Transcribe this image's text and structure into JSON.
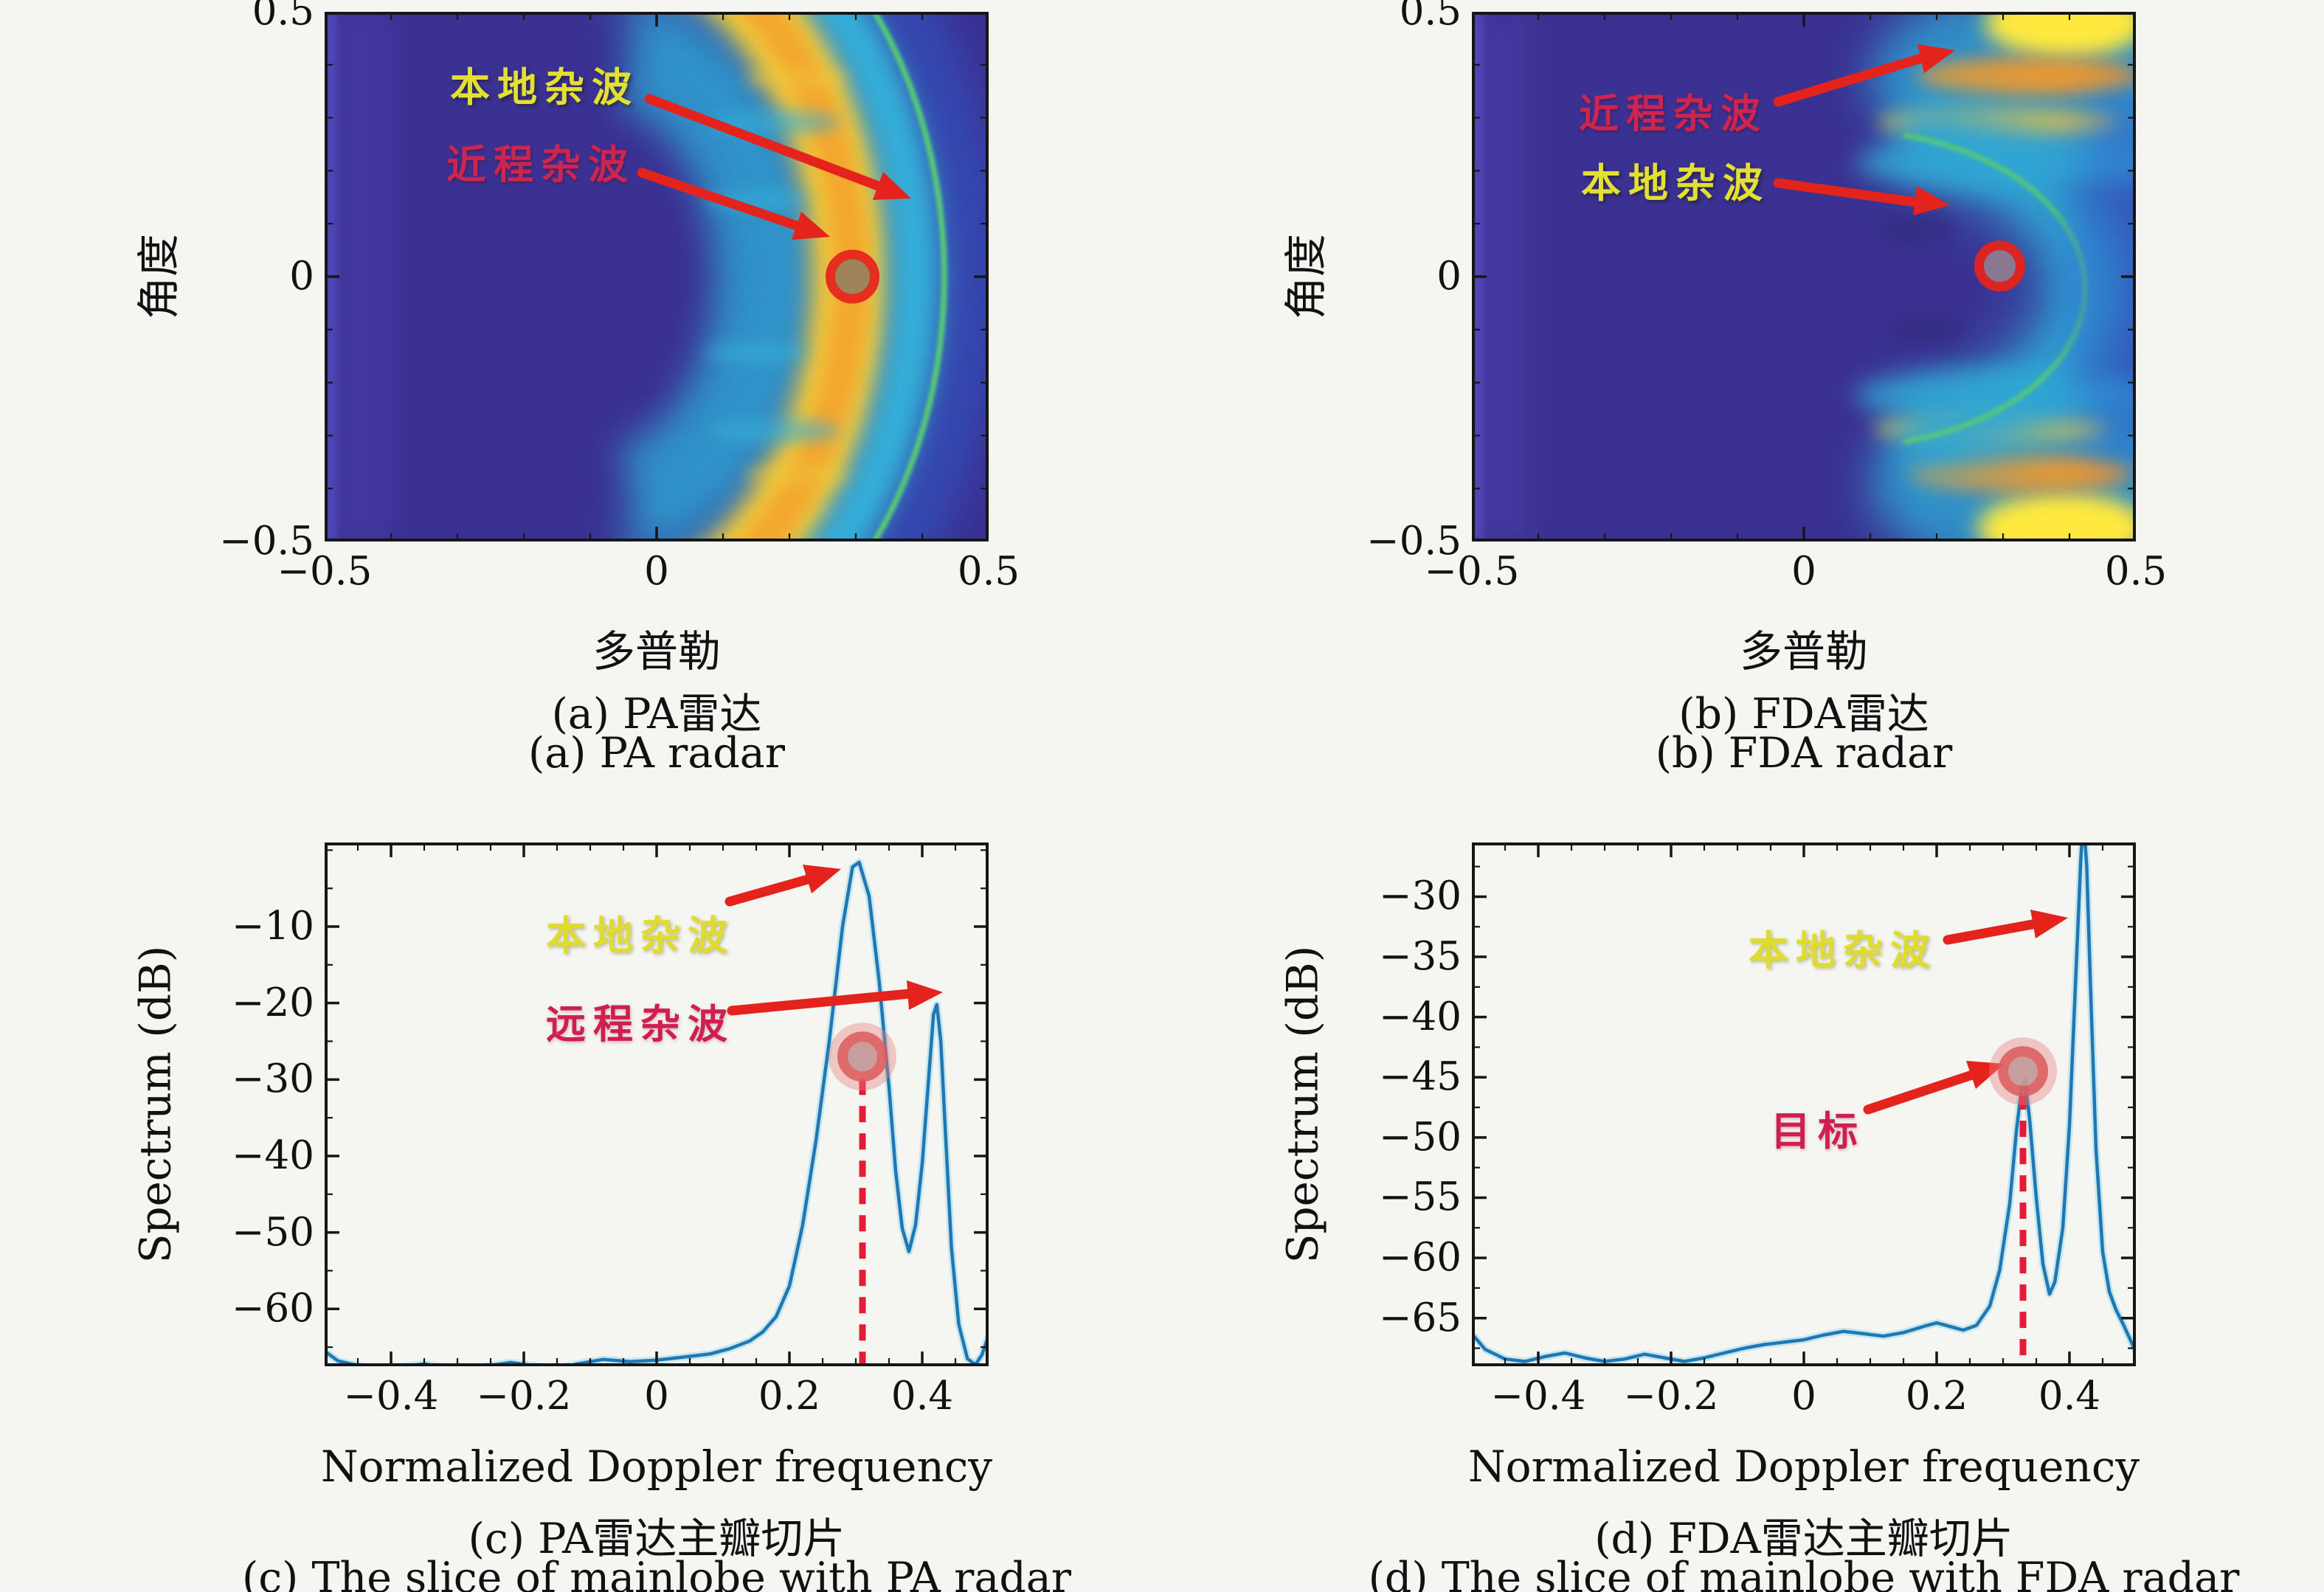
{
  "figure": {
    "background": "#f5f5f2",
    "kind": "2x2 radar clutter spectrum comparison figure"
  },
  "colors": {
    "arrow_red": "#e5231d",
    "annotation_yellow": "#e4e032",
    "annotation_crimson": "#cb2550",
    "curve_blue": "#1f77b4",
    "curve_glow": "#8fd7e8",
    "dashed_red": "#e31b34",
    "marker_fill": "#c59898",
    "marker_ring": "#dd5f5f",
    "target_ring": "#e5231d",
    "heatmap_bg": "#3a3192",
    "clutter_cyan": "#2fa6d4",
    "clutter_yellow": "#f3cd39",
    "clutter_orange": "#f39d2c",
    "clutter_green": "#57c878",
    "axis_color": "#161616"
  },
  "panels": {
    "a": {
      "ylabel": "角度",
      "xlabel": "多普勒",
      "caption_zh": "(a) PA雷达",
      "caption_en": "(a) PA radar",
      "ann1": "本地杂波",
      "ann2": "近程杂波"
    },
    "b": {
      "ylabel": "角度",
      "xlabel": "多普勒",
      "caption_zh": "(b) FDA雷达",
      "caption_en": "(b) FDA radar",
      "ann1": "近程杂波",
      "ann2": "本地杂波"
    },
    "c": {
      "ylabel": "Spectrum (dB)",
      "xlabel": "Normalized Doppler frequency",
      "caption_zh": "(c) PA雷达主瓣切片",
      "caption_en": "(c) The slice of mainlobe with PA radar",
      "ann1": "本地杂波",
      "ann2": "远程杂波"
    },
    "d": {
      "ylabel": "Spectrum (dB)",
      "xlabel": "Normalized Doppler frequency",
      "caption_zh": "(d) FDA雷达主瓣切片",
      "caption_en": "(d) The slice of mainlobe with FDA radar",
      "ann1": "本地杂波",
      "ann2": "目标"
    }
  },
  "chart_data": [
    {
      "id": "a",
      "type": "heatmap",
      "title": "(a) PA雷达",
      "xlabel": "多普勒",
      "ylabel": "角度",
      "xlim": [
        -0.5,
        0.5
      ],
      "ytop": 0.5,
      "ybot": -0.5,
      "xticks_v": [
        -0.5,
        0,
        0.5
      ],
      "xticks_l": [
        "−0.5",
        "0",
        "0.5"
      ],
      "yticks_v": [
        0.5,
        0,
        -0.5
      ],
      "yticks_l": [
        "0.5",
        "0",
        "−0.5"
      ],
      "xminor": 0.1,
      "yminor": 0.1,
      "target": {
        "x": 0.295,
        "y": 0
      },
      "features": [
        "crescent clutter ridge opening left, apex near doppler 0.45",
        "yellow-orange inner band through (0.30, 0)",
        "thin green outer arc near doppler 0.43",
        "red circled target at (0.30, 0) on yellow band"
      ]
    },
    {
      "id": "b",
      "type": "heatmap",
      "title": "(b) FDA雷达",
      "xlabel": "多普勒",
      "ylabel": "角度",
      "xlim": [
        -0.5,
        0.5
      ],
      "ytop": 0.5,
      "ybot": -0.5,
      "xticks_v": [
        -0.5,
        0,
        0.5
      ],
      "xticks_l": [
        "−0.5",
        "0",
        "0.5"
      ],
      "yticks_v": [
        0.5,
        0,
        -0.5
      ],
      "yticks_l": [
        "0.5",
        "0",
        "−0.5"
      ],
      "xminor": 0.1,
      "yminor": 0.1,
      "target": {
        "x": 0.295,
        "y": 0.02
      },
      "features": [
        "bright yellow near-range hotspots at top-right and bottom-right edges",
        "narrow cyan band with thin green arc bulging to doppler 0.42 at angle 0",
        "red circled target at (0.30, 0) on dark blue background"
      ]
    },
    {
      "id": "c",
      "type": "line",
      "title": "(c) PA雷达主瓣切片",
      "xlabel": "Normalized Doppler frequency",
      "ylabel": "Spectrum (dB)",
      "xlim": [
        -0.5,
        0.5
      ],
      "ytop": 1,
      "ybot": -67.5,
      "xticks_v": [
        -0.4,
        -0.2,
        0,
        0.2,
        0.4
      ],
      "xticks_l": [
        "−0.4",
        "−0.2",
        "0",
        "0.2",
        "0.4"
      ],
      "yticks_v": [
        -10,
        -20,
        -30,
        -40,
        -50,
        -60
      ],
      "yticks_l": [
        "−10",
        "−20",
        "−30",
        "−40",
        "−50",
        "−60"
      ],
      "xminor": 0.05,
      "yminor": 5,
      "x": [
        -0.5,
        -0.48,
        -0.45,
        -0.42,
        -0.38,
        -0.35,
        -0.32,
        -0.28,
        -0.25,
        -0.22,
        -0.18,
        -0.15,
        -0.12,
        -0.08,
        -0.04,
        0,
        0.04,
        0.08,
        0.11,
        0.14,
        0.16,
        0.18,
        0.2,
        0.22,
        0.24,
        0.26,
        0.28,
        0.295,
        0.305,
        0.32,
        0.335,
        0.35,
        0.36,
        0.37,
        0.38,
        0.39,
        0.4,
        0.41,
        0.417,
        0.422,
        0.428,
        0.435,
        0.444,
        0.455,
        0.468,
        0.48,
        0.49,
        0.5
      ],
      "y": [
        -65.5,
        -66.8,
        -67.4,
        -67.8,
        -67.5,
        -67.2,
        -67.6,
        -67.9,
        -67.4,
        -67,
        -67.5,
        -67.8,
        -67.2,
        -66.6,
        -66.9,
        -66.7,
        -66.3,
        -65.9,
        -65.2,
        -64.2,
        -63,
        -61,
        -57,
        -49,
        -38,
        -25,
        -10,
        -2.2,
        -1.6,
        -6,
        -17,
        -31,
        -42,
        -49.5,
        -52.5,
        -49,
        -41,
        -29.5,
        -21.5,
        -20.2,
        -25,
        -37,
        -52,
        -62,
        -66.5,
        -67.3,
        -66,
        -63.5
      ],
      "marker": {
        "x": 0.31,
        "y": -27
      },
      "dashed_x": 0.31,
      "peaks": [
        {
          "x": 0.3,
          "y": -1.6,
          "label": "本地杂波"
        },
        {
          "x": 0.42,
          "y": -20.2,
          "label": "远程杂波"
        }
      ]
    },
    {
      "id": "d",
      "type": "line",
      "title": "(d) FDA雷达主瓣切片",
      "xlabel": "Normalized Doppler frequency",
      "ylabel": "Spectrum (dB)",
      "xlim": [
        -0.5,
        0.5
      ],
      "ytop": -25.5,
      "ybot": -69,
      "xticks_v": [
        -0.4,
        -0.2,
        0,
        0.2,
        0.4
      ],
      "xticks_l": [
        "−0.4",
        "−0.2",
        "0",
        "0.2",
        "0.4"
      ],
      "yticks_v": [
        -30,
        -35,
        -40,
        -45,
        -50,
        -55,
        -60,
        -65
      ],
      "yticks_l": [
        "−30",
        "−35",
        "−40",
        "−45",
        "−50",
        "−55",
        "−60",
        "−65"
      ],
      "xminor": 0.05,
      "yminor": 2.5,
      "x": [
        -0.5,
        -0.48,
        -0.45,
        -0.42,
        -0.39,
        -0.36,
        -0.33,
        -0.3,
        -0.27,
        -0.24,
        -0.21,
        -0.18,
        -0.15,
        -0.12,
        -0.09,
        -0.06,
        -0.03,
        0,
        0.03,
        0.06,
        0.09,
        0.12,
        0.15,
        0.18,
        0.2,
        0.22,
        0.24,
        0.26,
        0.28,
        0.295,
        0.31,
        0.32,
        0.328,
        0.333,
        0.34,
        0.35,
        0.36,
        0.37,
        0.378,
        0.39,
        0.4,
        0.41,
        0.417,
        0.421,
        0.426,
        0.432,
        0.44,
        0.45,
        0.46,
        0.47,
        0.48,
        0.49,
        0.5
      ],
      "y": [
        -66.3,
        -67.6,
        -68.4,
        -68.6,
        -68.2,
        -67.9,
        -68.3,
        -68.6,
        -68.4,
        -68,
        -68.3,
        -68.6,
        -68.3,
        -67.9,
        -67.5,
        -67.2,
        -67,
        -66.8,
        -66.4,
        -66.1,
        -66.3,
        -66.5,
        -66.2,
        -65.7,
        -65.4,
        -65.7,
        -66,
        -65.6,
        -64,
        -61,
        -55.5,
        -49.5,
        -45.8,
        -45.2,
        -48.5,
        -55,
        -60.5,
        -63,
        -62,
        -57.5,
        -49,
        -36,
        -27,
        -23.5,
        -27.5,
        -38,
        -51,
        -59.5,
        -62.8,
        -64.3,
        -65.4,
        -66.6,
        -67.8
      ],
      "marker": {
        "x": 0.33,
        "y": -44.5
      },
      "dashed_x": 0.33,
      "peaks": [
        {
          "x": 0.333,
          "y": -45.2,
          "label": "目标"
        },
        {
          "x": 0.421,
          "y": -23.5,
          "label": "本地杂波"
        }
      ]
    }
  ]
}
